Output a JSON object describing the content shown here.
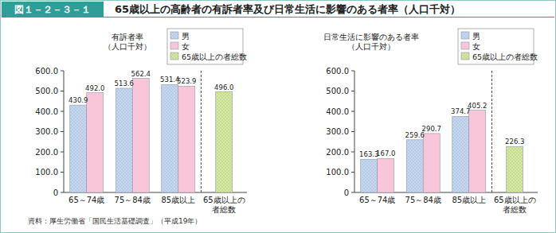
{
  "figure": {
    "label": "図１－２－３－１",
    "title": "65歳以上の高齢者の有訴者率及び日常生活に影響のある者率（人口千対）",
    "source": "資料：厚生労働省「国民生活基礎調査」（平成19年）"
  },
  "chart_data": [
    {
      "type": "bar",
      "ylabel": [
        "有訴者率",
        "（人口千対）"
      ],
      "categories": [
        "65～74歳",
        "75～84歳",
        "85歳以上",
        "65歳以上の者総数"
      ],
      "series": [
        {
          "name": "男",
          "color": "#c6d8f0",
          "values": [
            430.9,
            513.6,
            531.4,
            null
          ],
          "value_labels": [
            "430.9",
            "513.6",
            "531.4",
            null
          ]
        },
        {
          "name": "女",
          "color": "#f9c6d9",
          "values": [
            492.0,
            562.4,
            523.9,
            null
          ],
          "value_labels": [
            "492.0",
            "562.4",
            "523.9",
            null
          ]
        },
        {
          "name": "65歳以上の者総数",
          "color": "#d6e99c",
          "values": [
            null,
            null,
            null,
            496.0
          ],
          "value_labels": [
            null,
            null,
            null,
            "496.0"
          ]
        }
      ],
      "ylim": [
        0,
        600
      ],
      "yticks": [
        0,
        {
          "value": 100,
          "label": "100.0"
        },
        {
          "value": 200,
          "label": "200.0"
        },
        {
          "value": 300,
          "label": "300.0"
        },
        {
          "value": 400,
          "label": "400.0"
        },
        {
          "value": 500,
          "label": "500.0"
        },
        {
          "value": 600,
          "label": "600.0"
        }
      ],
      "grid": false,
      "legend": "top-right",
      "data_labels": true
    },
    {
      "type": "bar",
      "ylabel": [
        "日常生活に影響のある者率",
        "（人口千対）"
      ],
      "categories": [
        "65～74歳",
        "75～84歳",
        "85歳以上",
        "65歳以上の者総数"
      ],
      "series": [
        {
          "name": "男",
          "color": "#c6d8f0",
          "values": [
            163.3,
            259.6,
            374.7,
            null
          ],
          "value_labels": [
            "163.3",
            "259.6",
            "374.7",
            null
          ]
        },
        {
          "name": "女",
          "color": "#f9c6d9",
          "values": [
            167.0,
            290.7,
            405.2,
            null
          ],
          "value_labels": [
            "167.0",
            "290.7",
            "405.2",
            null
          ]
        },
        {
          "name": "65歳以上の者総数",
          "color": "#d6e99c",
          "values": [
            null,
            null,
            null,
            226.3
          ],
          "value_labels": [
            null,
            null,
            null,
            "226.3"
          ]
        }
      ],
      "ylim": [
        0,
        600
      ],
      "yticks": [
        0,
        {
          "value": 100,
          "label": "100.0"
        },
        {
          "value": 200,
          "label": "200.0"
        },
        {
          "value": 300,
          "label": "300.0"
        },
        {
          "value": 400,
          "label": "400.0"
        },
        {
          "value": 500,
          "label": "500.0"
        },
        {
          "value": 600,
          "label": "600.0"
        }
      ],
      "grid": false,
      "legend": "top-right",
      "data_labels": true
    }
  ]
}
